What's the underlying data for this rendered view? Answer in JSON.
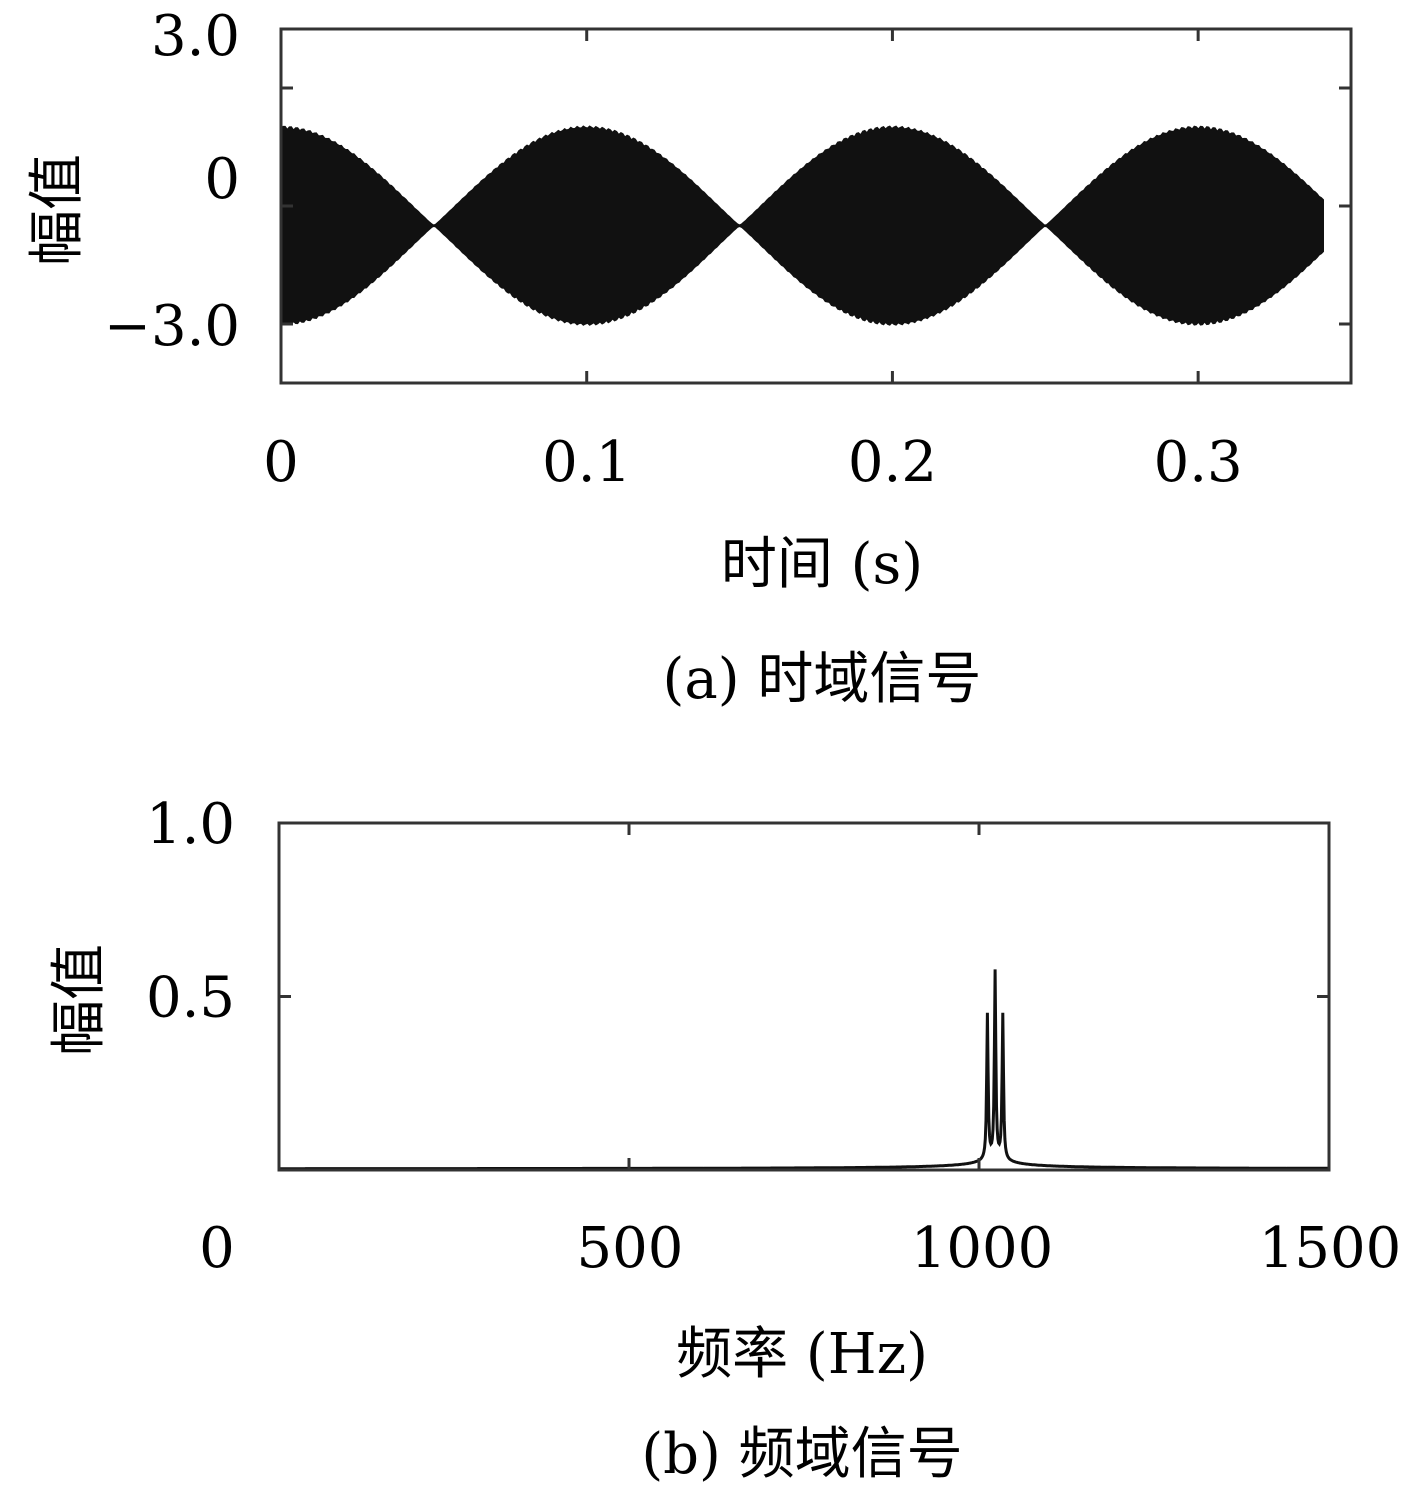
{
  "chart_data": [
    {
      "type": "line",
      "title": "",
      "caption": "(a) 时域信号",
      "xlabel": "时间 (s)",
      "ylabel": "幅值",
      "xlim": [
        0,
        0.35
      ],
      "ylim": [
        -4.5,
        4.5
      ],
      "xticks": [
        0,
        0.1,
        0.2,
        0.3
      ],
      "xtick_labels": [
        "0",
        "0.1",
        "0.2",
        "0.3"
      ],
      "yticks": [
        -3,
        0,
        3
      ],
      "ytick_labels": [
        "−3.0",
        "0",
        "3.0"
      ],
      "extra_ytick_marks": [
        -3,
        0,
        3
      ],
      "grid": false,
      "color": "#111111",
      "signal": {
        "t_end": 0.341,
        "offset": -0.5,
        "amplitude_max": 2.45,
        "amplitude_min": 0.02,
        "envelope_period": 0.1,
        "min_at": [
          0.05,
          0.15,
          0.25
        ],
        "max_at": [
          0,
          0.1,
          0.2,
          0.3
        ]
      }
    },
    {
      "type": "line",
      "title": "",
      "caption": "(b) 频域信号",
      "xlabel": "频率 (Hz)",
      "ylabel": "幅值",
      "xlim": [
        0,
        1500
      ],
      "ylim": [
        0,
        1.0
      ],
      "xticks": [
        0,
        500,
        1000,
        1500
      ],
      "xtick_labels": [
        "0",
        "500",
        "1000",
        "1500"
      ],
      "yticks": [
        0.5,
        1.0
      ],
      "ytick_labels": [
        "0.5",
        "1.0"
      ],
      "grid": false,
      "color": "#111111",
      "peaks": [
        {
          "frequency": 1012,
          "magnitude": 0.52
        },
        {
          "frequency": 1023,
          "magnitude": 0.67
        },
        {
          "frequency": 1034,
          "magnitude": 0.52
        }
      ],
      "baseline": 0.003
    }
  ]
}
